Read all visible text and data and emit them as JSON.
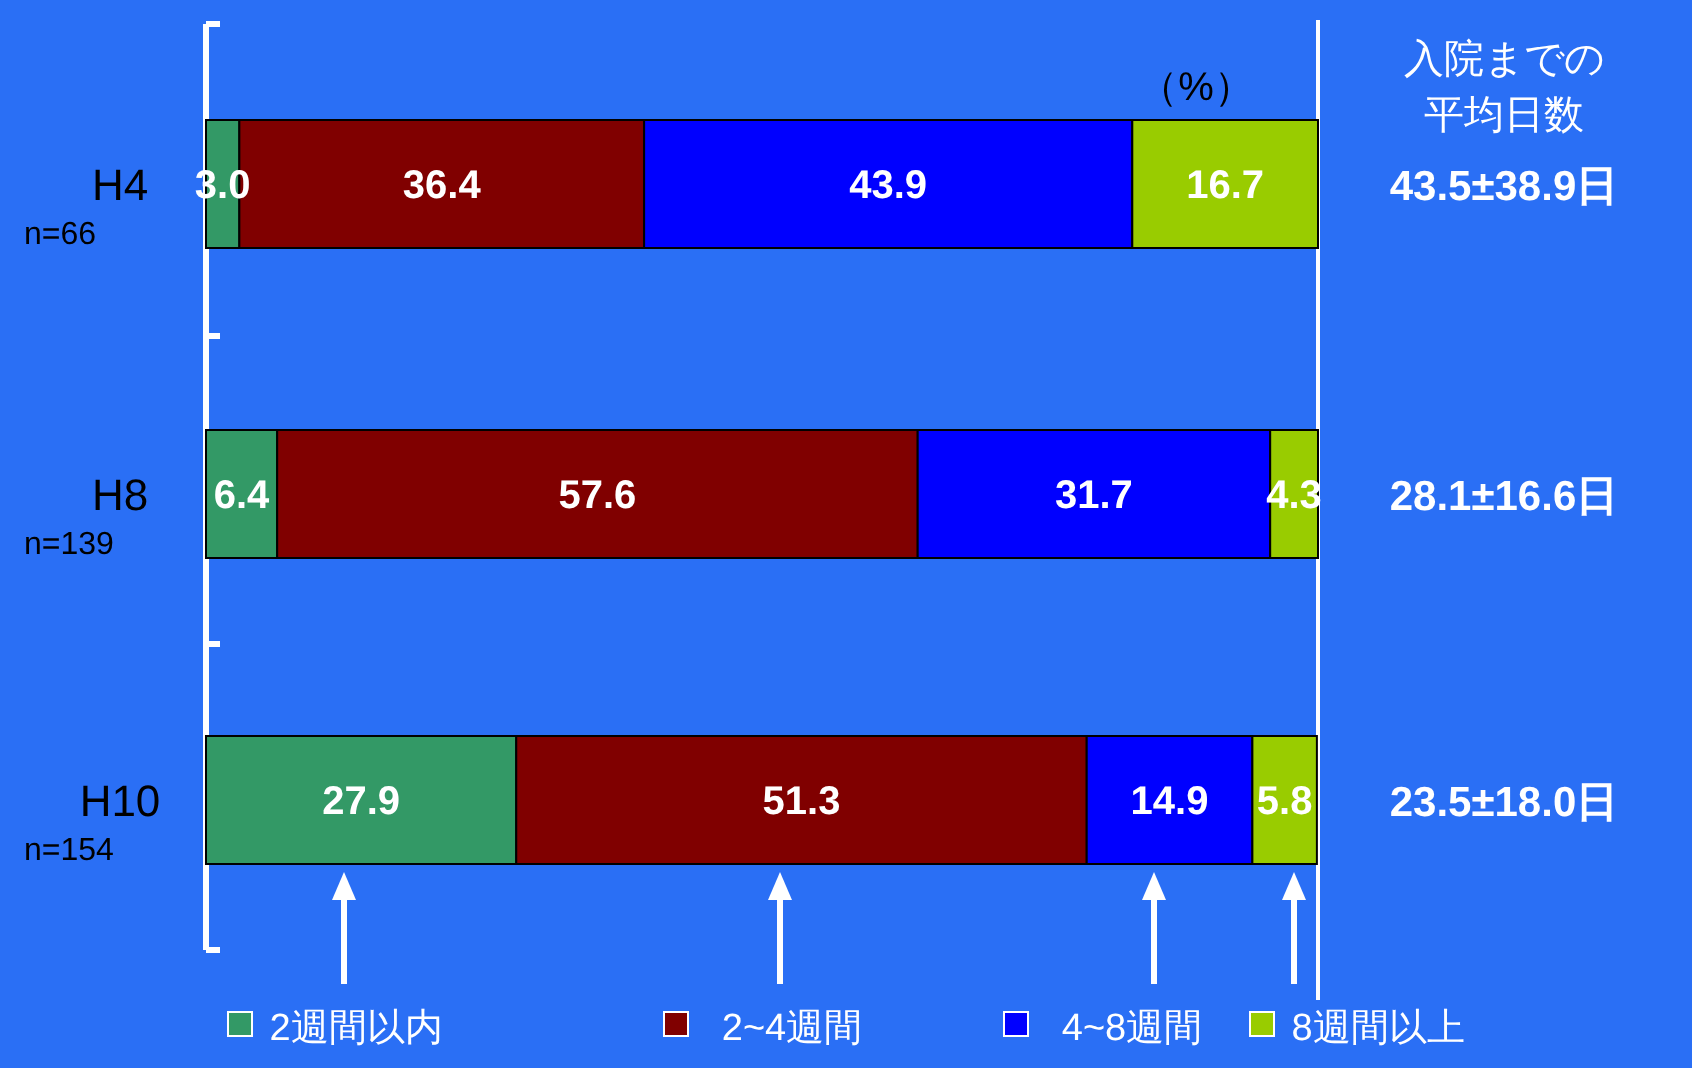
{
  "chart_data": {
    "type": "bar",
    "orientation": "horizontal",
    "stacked": true,
    "categories": [
      "H4\nn=66",
      "H8\nn=139",
      "H10\nn=154"
    ],
    "xlim": [
      0,
      100
    ],
    "series": [
      {
        "name": "2週間以内",
        "color": "#339966",
        "values": [
          3.0,
          6.4,
          27.9
        ],
        "value_labels": [
          "3.0",
          "6.4",
          "27.9"
        ]
      },
      {
        "name": "2~4週間",
        "color": "#800000",
        "values": [
          36.4,
          57.6,
          51.3
        ],
        "value_labels": [
          "36.4",
          "57.6",
          "51.3"
        ]
      },
      {
        "name": "4~8週間",
        "color": "#0000ff",
        "values": [
          43.9,
          31.7,
          14.9
        ],
        "value_labels": [
          "43.9",
          "31.7",
          "14.9"
        ]
      },
      {
        "name": "8週間以上",
        "color": "#99cc00",
        "values": [
          16.7,
          4.3,
          5.8
        ],
        "value_labels": [
          "16.7",
          "4.3",
          "5.8"
        ]
      }
    ],
    "legend": "bottom",
    "annotations": [
      "（%）",
      "入院までの",
      "平均日数",
      "43.5±38.9日",
      "28.1±16.6日",
      "23.5±18.0日"
    ]
  }
}
